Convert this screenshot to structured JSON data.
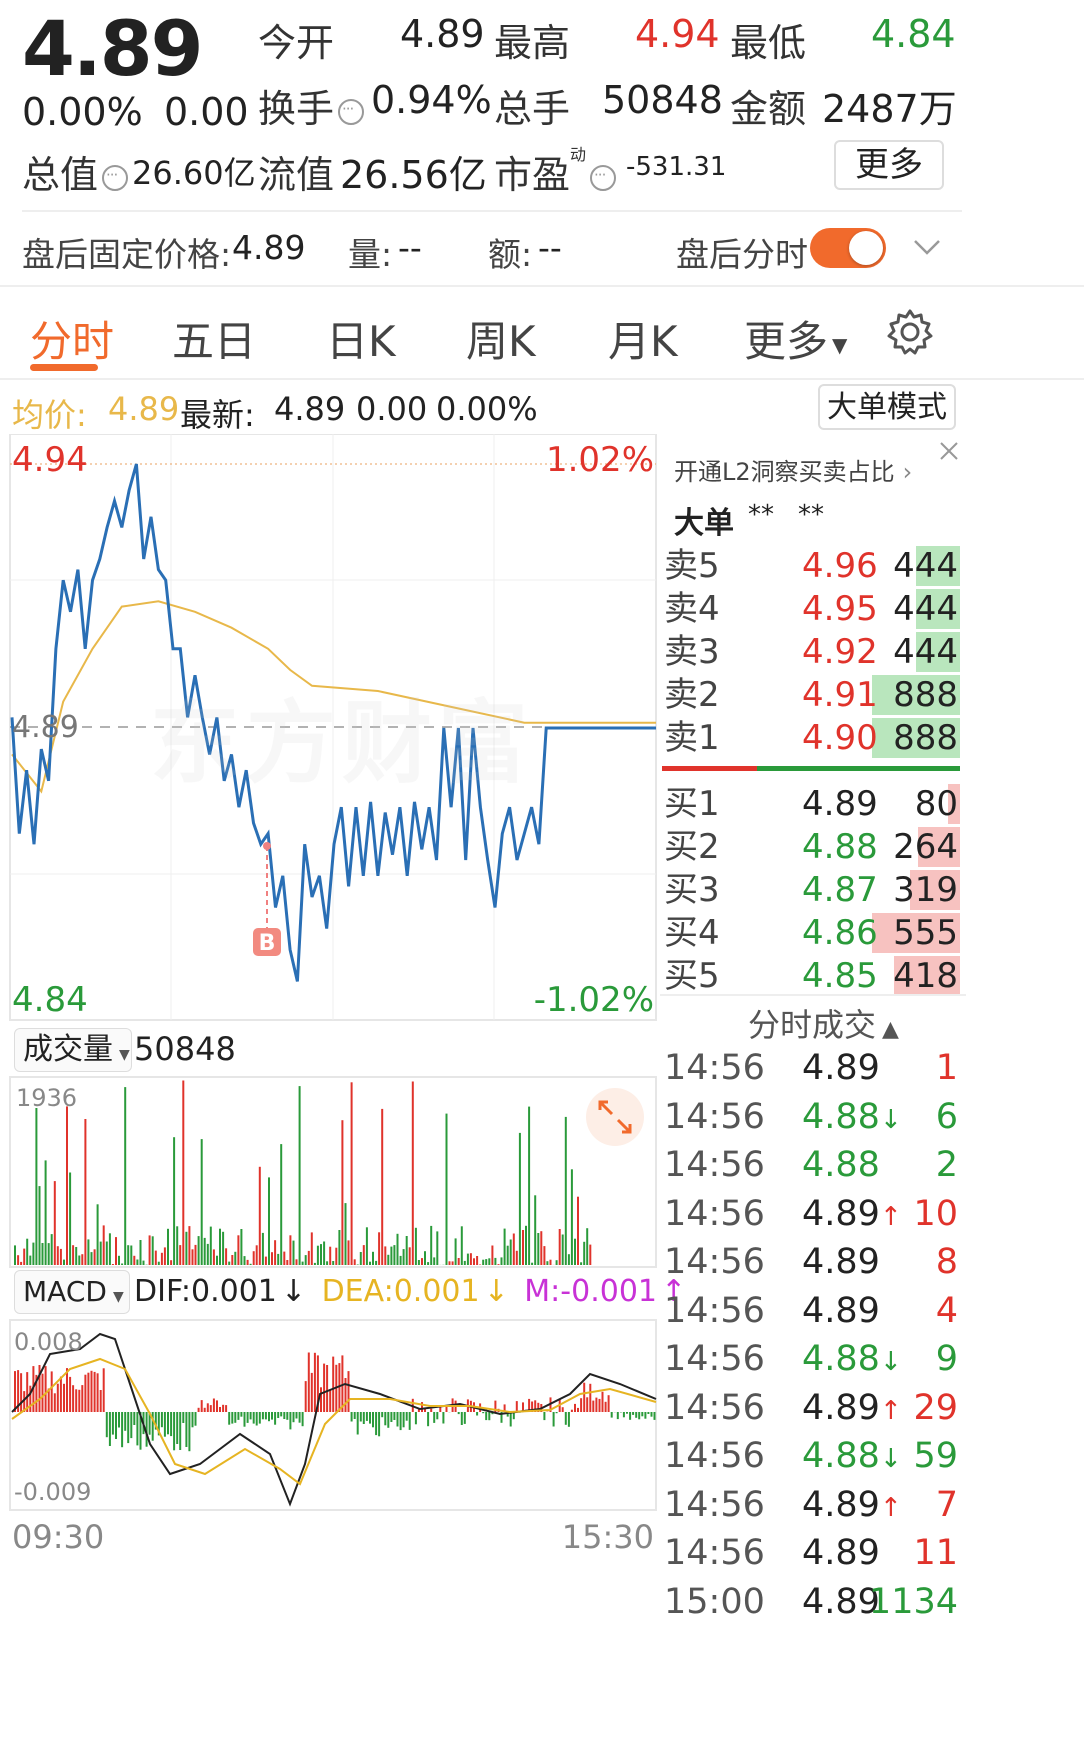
{
  "header": {
    "price": "4.89",
    "change_pct": "0.00%",
    "change_abs": "0.00",
    "open_label": "今开",
    "open_val": "4.89",
    "high_label": "最高",
    "high_val": "4.94",
    "low_label": "最低",
    "low_val": "4.84",
    "turnover_label": "换手",
    "turnover_val": "0.94%",
    "volume_label": "总手",
    "volume_val": "50848",
    "amount_label": "金额",
    "amount_val": "2487万",
    "mktcap_label": "总值",
    "mktcap_val": "26.60亿",
    "float_label": "流值",
    "float_val": "26.56亿",
    "pe_label": "市盈",
    "pe_sup": "动",
    "pe_val": "-531.31",
    "more_button": "更多"
  },
  "afterhours": {
    "price_label": "盘后固定价格:",
    "price_val": "4.89",
    "vol_label": "量:",
    "vol_val": "--",
    "amt_label": "额:",
    "amt_val": "--",
    "toggle_label": "盘后分时",
    "toggle_on": true
  },
  "tabs": [
    "分时",
    "五日",
    "日K",
    "周K",
    "月K",
    "更多"
  ],
  "active_tab": 0,
  "info_bar": {
    "avg_label": "均价:",
    "avg_val": "4.89",
    "latest_label": "最新:",
    "latest_val": "4.89",
    "latest_chg": "0.00",
    "latest_pct": "0.00%",
    "big_order_button": "大单模式"
  },
  "intraday_chart": {
    "high_price": "4.94",
    "high_pct": "1.02%",
    "low_price": "4.84",
    "low_pct": "-1.02%",
    "mid_price": "4.89",
    "watermark": "东方财富",
    "marker": "B"
  },
  "volume_panel": {
    "label": "成交量",
    "total": "50848",
    "max_tick": "1936"
  },
  "macd_panel": {
    "label": "MACD",
    "dif": "DIF:0.001",
    "dif_arrow": "↓",
    "dea": "DEA:0.001",
    "dea_arrow": "↓",
    "m": "M:-0.001",
    "m_arrow": "↑",
    "top_tick": "0.008",
    "bottom_tick": "-0.009",
    "time_start": "09:30",
    "time_end": "15:30",
    "dif_color": "#222222",
    "dea_color": "#e6b422",
    "m_color": "#c832d6"
  },
  "orderbook": {
    "l2_link": "开通L2洞察买卖占比",
    "big_order_label": "大单",
    "big_order_v1": "**",
    "big_order_v2": "**",
    "asks": [
      {
        "label": "卖5",
        "price": "4.96",
        "vol": "444",
        "fill": 0.5
      },
      {
        "label": "卖4",
        "price": "4.95",
        "vol": "444",
        "fill": 0.5
      },
      {
        "label": "卖3",
        "price": "4.92",
        "vol": "444",
        "fill": 0.5
      },
      {
        "label": "卖2",
        "price": "4.91",
        "vol": "888",
        "fill": 1.0
      },
      {
        "label": "卖1",
        "price": "4.90",
        "vol": "888",
        "fill": 1.0
      }
    ],
    "bids": [
      {
        "label": "买1",
        "price": "4.89",
        "vol": "80",
        "fill": 0.14
      },
      {
        "label": "买2",
        "price": "4.88",
        "vol": "264",
        "fill": 0.48
      },
      {
        "label": "买3",
        "price": "4.87",
        "vol": "319",
        "fill": 0.57
      },
      {
        "label": "买4",
        "price": "4.86",
        "vol": "555",
        "fill": 1.0
      },
      {
        "label": "买5",
        "price": "4.85",
        "vol": "418",
        "fill": 0.75
      }
    ],
    "sell_ratio": 0.32
  },
  "trades": {
    "header": "分时成交",
    "rows": [
      {
        "time": "14:56",
        "price": "4.89",
        "dir": "",
        "vol": "1",
        "color": "red"
      },
      {
        "time": "14:56",
        "price": "4.88",
        "dir": "↓",
        "vol": "6",
        "color": "green"
      },
      {
        "time": "14:56",
        "price": "4.88",
        "dir": "",
        "vol": "2",
        "color": "green"
      },
      {
        "time": "14:56",
        "price": "4.89",
        "dir": "↑",
        "vol": "10",
        "color": "red"
      },
      {
        "time": "14:56",
        "price": "4.89",
        "dir": "",
        "vol": "8",
        "color": "red"
      },
      {
        "time": "14:56",
        "price": "4.89",
        "dir": "",
        "vol": "4",
        "color": "red"
      },
      {
        "time": "14:56",
        "price": "4.88",
        "dir": "↓",
        "vol": "9",
        "color": "green"
      },
      {
        "time": "14:56",
        "price": "4.89",
        "dir": "↑",
        "vol": "29",
        "color": "red"
      },
      {
        "time": "14:56",
        "price": "4.88",
        "dir": "↓",
        "vol": "59",
        "color": "green"
      },
      {
        "time": "14:56",
        "price": "4.89",
        "dir": "↑",
        "vol": "7",
        "color": "red"
      },
      {
        "time": "14:56",
        "price": "4.89",
        "dir": "",
        "vol": "11",
        "color": "red"
      },
      {
        "time": "15:00",
        "price": "4.89",
        "dir": "",
        "vol": "1134",
        "color": "green"
      }
    ]
  },
  "colors": {
    "accent": "#f16a2c",
    "up": "#e0332b",
    "down": "#2a9a3a",
    "price_line": "#2a6fb5",
    "avg_line": "#e8b84a"
  }
}
